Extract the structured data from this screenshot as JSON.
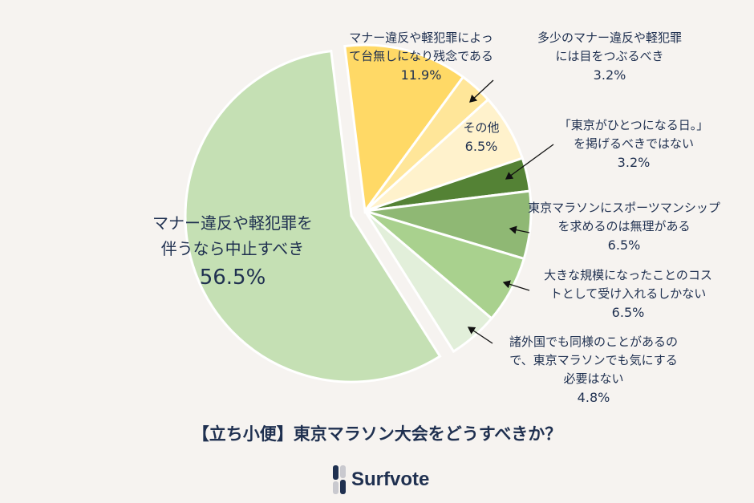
{
  "chart_data": {
    "type": "pie",
    "title": "【立ち小便】東京マラソン大会をどうすべきか？",
    "slices": [
      {
        "label": "マナー違反や軽犯罪によって台無しになり残念である",
        "lines": [
          "マナー違反や軽犯罪によっ",
          "て台無しになり残念である"
        ],
        "value": 11.9,
        "value_label": "11.9%",
        "color": "#ffd966"
      },
      {
        "label": "多少のマナー違反や軽犯罪には目をつぶるべき",
        "lines": [
          "多少のマナー違反や軽犯罪",
          "には目をつぶるべき"
        ],
        "value": 3.2,
        "value_label": "3.2%",
        "color": "#ffe699"
      },
      {
        "label": "その他",
        "lines": [
          "その他"
        ],
        "value": 6.5,
        "value_label": "6.5%",
        "color": "#fff2cc"
      },
      {
        "label": "「東京がひとつになる日。」を掲げるべきではない",
        "lines": [
          "「東京がひとつになる日。」",
          "を掲げるべきではない"
        ],
        "value": 3.2,
        "value_label": "3.2%",
        "color": "#548235"
      },
      {
        "label": "東京マラソンにスポーツマンシップを求めるのは無理がある",
        "lines": [
          "東京マラソンにスポーツマンシップ",
          "を求めるのは無理がある"
        ],
        "value": 6.5,
        "value_label": "6.5%",
        "color": "#8fb874"
      },
      {
        "label": "大きな規模になったことのコストとして受け入れるしかない",
        "lines": [
          "大きな規模になったことのコス",
          "トとして受け入れるしかない"
        ],
        "value": 6.5,
        "value_label": "6.5%",
        "color": "#a9d18e"
      },
      {
        "label": "諸外国でも同様のことがあるので、東京マラソンでも気にする必要はない",
        "lines": [
          "諸外国でも同様のことがあるの",
          "で、東京マラソンでも気にする",
          "必要はない"
        ],
        "value": 4.8,
        "value_label": "4.8%",
        "color": "#e2efda"
      },
      {
        "label": "マナー違反や軽犯罪を伴うなら中止すべき",
        "lines": [
          "マナー違反や軽犯罪を",
          "伴うなら中止すべき"
        ],
        "value": 56.5,
        "value_label": "56.5%",
        "color": "#c5e0b4"
      }
    ]
  },
  "brand": {
    "name": "Surfvote"
  },
  "colors": {
    "background": "#f6f3f0",
    "text": "#1f3050"
  }
}
